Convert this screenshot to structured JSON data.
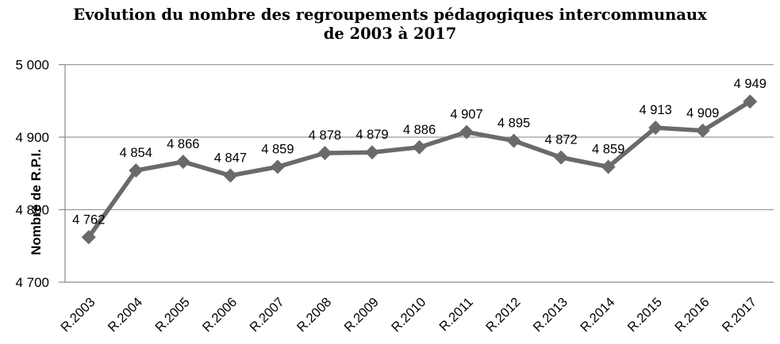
{
  "chart_data": {
    "type": "line",
    "title": "Evolution du nombre des regroupements pédagogiques intercommunaux de 2003 à 2017",
    "title_lines": [
      "Evolution du nombre des regroupements pédagogiques intercommunaux",
      "de 2003 à 2017"
    ],
    "xlabel": "",
    "ylabel": "Nombre de  R.P.I.",
    "categories": [
      "R.2003",
      "R.2004",
      "R.2005",
      "R.2006",
      "R.2007",
      "R.2008",
      "R.2009",
      "R.2010",
      "R.2011",
      "R.2012",
      "R.2013",
      "R.2014",
      "R.2015",
      "R.2016",
      "R.2017"
    ],
    "series": [
      {
        "name": "Nombre de R.P.I.",
        "values": [
          4762,
          4854,
          4866,
          4847,
          4859,
          4878,
          4879,
          4886,
          4907,
          4895,
          4872,
          4859,
          4913,
          4909,
          4949
        ],
        "value_labels": [
          "4 762",
          "4 854",
          "4 866",
          "4 847",
          "4 859",
          "4 878",
          "4 879",
          "4 886",
          "4 907",
          "4 895",
          "4 872",
          "4 859",
          "4 913",
          "4 909",
          "4 949"
        ]
      }
    ],
    "ylim": [
      4700,
      5000
    ],
    "yticks": [
      5000,
      4900,
      4800,
      4700
    ],
    "ytick_labels": [
      "5 000",
      "4 900",
      "4 800",
      "4 700"
    ],
    "grid": true,
    "legend_position": "none",
    "marker": "diamond",
    "colors": {
      "line": "#6a6a6a",
      "marker": "#6a6a6a",
      "gridline": "#9b9b9b",
      "axis": "#8a8a8a",
      "text": "#000000",
      "background": "#ffffff"
    }
  }
}
